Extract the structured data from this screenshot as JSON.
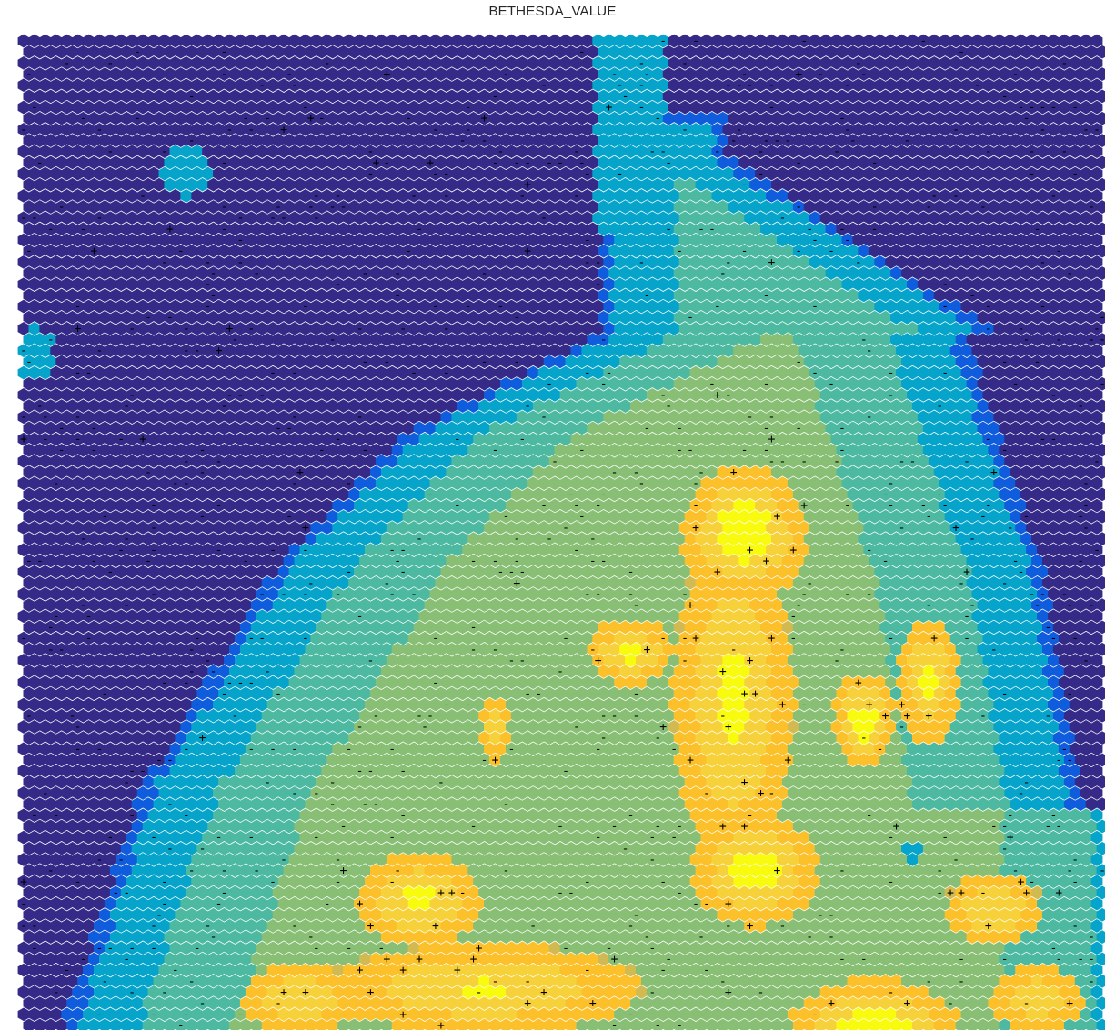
{
  "chart_data": {
    "type": "heatmap",
    "title": "BETHESDA_VALUE",
    "grid_shape": "hexagonal",
    "grid_on": false,
    "legend": "none",
    "colormap": [
      "#352a87",
      "#0f5cdd",
      "#06a4ca",
      "#4cb9a0",
      "#88bf75",
      "#d2ba52",
      "#fbc02a",
      "#f7d13a",
      "#f9fb0e"
    ],
    "marker_legend": {
      "positive": "+",
      "negative": "-"
    },
    "value_range": [
      0,
      1
    ],
    "regions": [
      {
        "name": "low-background",
        "level": 0.0
      },
      {
        "name": "left-island",
        "level": 0.33
      },
      {
        "name": "upper-left-spot",
        "level": 0.3
      },
      {
        "name": "mid-level-band",
        "level": 0.35
      },
      {
        "name": "central-plateau",
        "level": 0.55
      },
      {
        "name": "hotspot-upper-center",
        "level": 0.95
      },
      {
        "name": "hotspot-center",
        "level": 0.92
      },
      {
        "name": "hotspot-right",
        "level": 0.93
      },
      {
        "name": "hotspot-lower-right",
        "level": 0.97
      },
      {
        "name": "hotspot-lower-center",
        "level": 0.92
      }
    ]
  }
}
